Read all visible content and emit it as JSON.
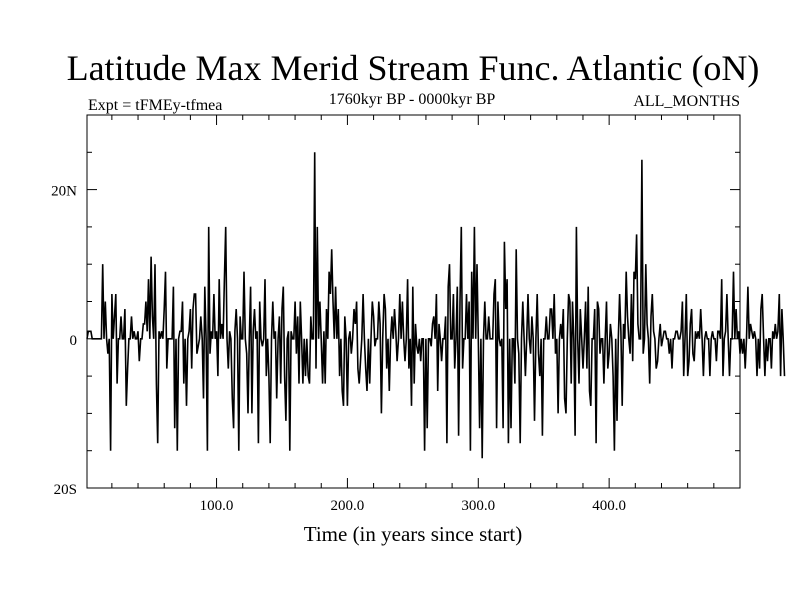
{
  "chart_data": {
    "type": "line",
    "title": "Latitude Max Merid Stream Func. Atlantic (oN)",
    "subtitle_left": "Expt = tFMEy-tfmea",
    "subtitle_center": "1760kyr BP - 0000kyr BP",
    "subtitle_right": "ALL_MONTHS",
    "xlabel": "Time (in years since start)",
    "ylabel": "",
    "xlim": [
      1,
      500
    ],
    "ylim": [
      -20,
      30
    ],
    "x_ticks": [
      100,
      200,
      300,
      400
    ],
    "x_tick_labels": [
      "100.0",
      "200.0",
      "300.0",
      "400.0"
    ],
    "y_ticks": [
      20,
      0,
      -20
    ],
    "y_tick_labels": [
      "20N",
      "0",
      "20S"
    ],
    "grid": false,
    "color": "#000000",
    "series": [
      {
        "x_start": 1,
        "x_step": 1,
        "values": [
          0,
          1,
          1,
          1,
          0,
          0,
          0,
          0,
          0,
          0,
          0,
          0,
          10,
          0,
          5,
          0,
          -2,
          0,
          -15,
          6,
          0,
          3,
          6,
          -6,
          0,
          0,
          3,
          0,
          0,
          4,
          -9,
          -4,
          0,
          0,
          3,
          0,
          1,
          0,
          0,
          1,
          -3,
          0,
          0,
          2,
          2,
          5,
          1,
          8,
          0,
          11,
          3,
          0,
          10,
          -6,
          -14,
          1,
          0,
          1,
          0,
          4,
          9,
          -4,
          0,
          0,
          0,
          0,
          7,
          -12,
          0,
          -15,
          0,
          1,
          1,
          5,
          -6,
          0,
          -9,
          0,
          1,
          4,
          -4,
          4,
          6,
          6,
          -2,
          -1,
          0,
          3,
          0,
          -8,
          7,
          0,
          -15,
          15,
          -2,
          1,
          0,
          6,
          0,
          1,
          -5,
          8,
          0,
          2,
          0,
          8,
          15,
          0,
          -4,
          1,
          0,
          -8,
          -12,
          1,
          4,
          0,
          -15,
          3,
          0,
          0,
          9,
          0,
          -2,
          -10,
          0,
          7,
          -10,
          1,
          4,
          0,
          1,
          -14,
          5,
          0,
          -1,
          0,
          8,
          -5,
          0,
          -5,
          -14,
          0,
          5,
          0,
          1,
          -8,
          0,
          3,
          -6,
          4,
          7,
          -5,
          -11,
          0,
          1,
          -15,
          1,
          0,
          0,
          5,
          -2,
          3,
          -6,
          5,
          0,
          -6,
          0,
          -5,
          0,
          -5,
          -6,
          3,
          0,
          0,
          25,
          -4,
          15,
          0,
          5,
          0,
          -6,
          1,
          -6,
          4,
          0,
          9,
          6,
          12,
          5,
          0,
          7,
          0,
          4,
          -5,
          0,
          -7,
          -9,
          3,
          0,
          -9,
          0,
          1,
          -2,
          0,
          4,
          2,
          5,
          -4,
          -6,
          -3,
          0,
          6,
          0,
          -4,
          -7,
          0,
          -6,
          0,
          5,
          3,
          -1,
          0,
          0,
          5,
          2,
          -10,
          0,
          6,
          4,
          -4,
          0,
          -7,
          0,
          3,
          0,
          4,
          1,
          -3,
          0,
          6,
          0,
          5,
          0,
          -3,
          0,
          8,
          -4,
          0,
          -9,
          7,
          -6,
          2,
          -1,
          -2,
          0,
          -3,
          0,
          0,
          -15,
          0,
          -12,
          0,
          0,
          -1,
          2,
          3,
          0,
          6,
          -7,
          2,
          0,
          -3,
          0,
          0,
          3,
          -14,
          7,
          10,
          0,
          0,
          6,
          -4,
          0,
          7,
          -13,
          5,
          15,
          -4,
          0,
          0,
          6,
          0,
          5,
          -15,
          9,
          0,
          15,
          0,
          10,
          0,
          -12,
          0,
          -16,
          0,
          5,
          0,
          0,
          3,
          0,
          0,
          0,
          6,
          8,
          -12,
          5,
          0,
          -1,
          0,
          -12,
          13,
          4,
          8,
          -14,
          0,
          -12,
          0,
          0,
          -6,
          12,
          0,
          -2,
          -14,
          0,
          5,
          0,
          -5,
          0,
          6,
          0,
          -2,
          3,
          0,
          -11,
          0,
          6,
          -2,
          -5,
          0,
          -13,
          0,
          0,
          3,
          0,
          0,
          4,
          4,
          0,
          6,
          -2,
          0,
          -10,
          0,
          2,
          0,
          4,
          -8,
          -10,
          0,
          6,
          5,
          -6,
          5,
          0,
          -13,
          15,
          0,
          -6,
          4,
          0,
          -4,
          0,
          5,
          -4,
          7,
          -7,
          -9,
          0,
          0,
          4,
          -14,
          5,
          4,
          -2,
          0,
          0,
          -6,
          0,
          5,
          -4,
          -2,
          2,
          0,
          -5,
          -15,
          0,
          -11,
          0,
          6,
          1,
          -9,
          2,
          0,
          9,
          3,
          0,
          -2,
          6,
          -3,
          9,
          8,
          14,
          2,
          0,
          0,
          24,
          -2,
          0,
          10,
          2,
          0,
          -6,
          3,
          6,
          1,
          0,
          -4,
          -3,
          0,
          2,
          -1,
          0,
          1,
          1,
          0,
          0,
          -2,
          0,
          -4,
          0,
          0,
          1,
          1,
          0,
          0,
          1,
          5,
          -5,
          0,
          6,
          -5,
          -3,
          2,
          4,
          -2,
          -3,
          1,
          0,
          1,
          0,
          4,
          0,
          -5,
          0,
          1,
          0,
          0,
          -5,
          0,
          1,
          0,
          0,
          -3,
          1,
          1,
          0,
          8,
          -5,
          0,
          1,
          6,
          0,
          -5,
          0,
          0,
          9,
          0,
          4,
          0,
          1,
          -2,
          0,
          -2,
          0,
          -4,
          0,
          7,
          0,
          2,
          1,
          0,
          1,
          0,
          -5,
          0,
          -4,
          4,
          6,
          0,
          -5,
          0,
          -3,
          0,
          0,
          -4,
          1,
          0,
          2,
          0,
          1,
          6,
          -5,
          4,
          0,
          -5
        ]
      }
    ]
  }
}
